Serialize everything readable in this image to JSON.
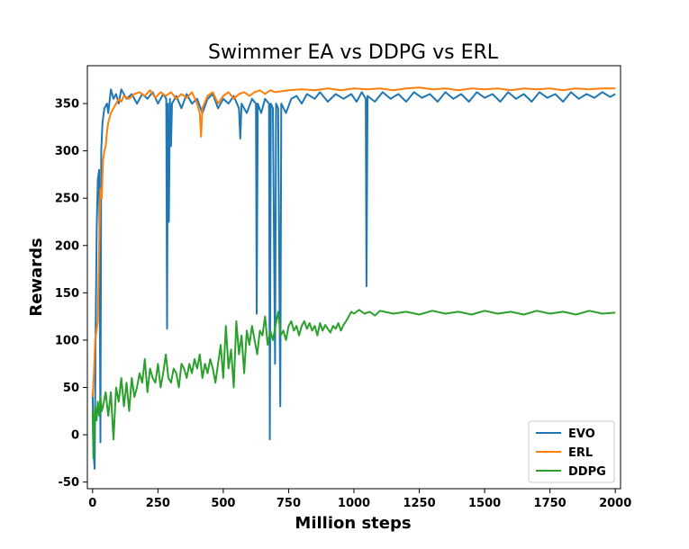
{
  "chart_data": {
    "type": "line",
    "title": "Swimmer EA vs DDPG vs ERL",
    "xlabel": "Million steps",
    "ylabel": "Rewards",
    "xlim": [
      -20,
      2020
    ],
    "ylim": [
      -57,
      390
    ],
    "xticks": [
      0,
      250,
      500,
      750,
      1000,
      1250,
      1500,
      1750,
      2000
    ],
    "yticks": [
      -50,
      0,
      50,
      100,
      150,
      200,
      250,
      300,
      350
    ],
    "grid": false,
    "legend_position": "lower-right",
    "series": [
      {
        "name": "EVO",
        "color": "#1f77b4",
        "points": [
          [
            0,
            45
          ],
          [
            5,
            -25
          ],
          [
            8,
            -36
          ],
          [
            12,
            120
          ],
          [
            16,
            220
          ],
          [
            20,
            270
          ],
          [
            25,
            280
          ],
          [
            30,
            -8
          ],
          [
            33,
            300
          ],
          [
            38,
            330
          ],
          [
            45,
            345
          ],
          [
            55,
            350
          ],
          [
            60,
            340
          ],
          [
            70,
            365
          ],
          [
            80,
            355
          ],
          [
            90,
            360
          ],
          [
            100,
            350
          ],
          [
            110,
            365
          ],
          [
            130,
            355
          ],
          [
            150,
            360
          ],
          [
            170,
            350
          ],
          [
            190,
            360
          ],
          [
            210,
            355
          ],
          [
            230,
            362
          ],
          [
            250,
            350
          ],
          [
            270,
            360
          ],
          [
            282,
            355
          ],
          [
            285,
            112
          ],
          [
            288,
            350
          ],
          [
            292,
            225
          ],
          [
            296,
            355
          ],
          [
            300,
            305
          ],
          [
            304,
            350
          ],
          [
            320,
            358
          ],
          [
            340,
            345
          ],
          [
            360,
            360
          ],
          [
            380,
            350
          ],
          [
            400,
            355
          ],
          [
            420,
            340
          ],
          [
            440,
            355
          ],
          [
            460,
            360
          ],
          [
            480,
            345
          ],
          [
            500,
            355
          ],
          [
            520,
            350
          ],
          [
            540,
            358
          ],
          [
            560,
            345
          ],
          [
            565,
            313
          ],
          [
            570,
            350
          ],
          [
            590,
            340
          ],
          [
            610,
            355
          ],
          [
            625,
            350
          ],
          [
            628,
            128
          ],
          [
            632,
            350
          ],
          [
            645,
            340
          ],
          [
            660,
            355
          ],
          [
            675,
            350
          ],
          [
            678,
            -5
          ],
          [
            682,
            350
          ],
          [
            690,
            345
          ],
          [
            698,
            75
          ],
          [
            702,
            350
          ],
          [
            710,
            345
          ],
          [
            718,
            30
          ],
          [
            722,
            350
          ],
          [
            740,
            340
          ],
          [
            760,
            355
          ],
          [
            780,
            358
          ],
          [
            800,
            350
          ],
          [
            820,
            360
          ],
          [
            850,
            355
          ],
          [
            870,
            362
          ],
          [
            900,
            352
          ],
          [
            930,
            360
          ],
          [
            960,
            355
          ],
          [
            990,
            360
          ],
          [
            1010,
            352
          ],
          [
            1030,
            362
          ],
          [
            1045,
            355
          ],
          [
            1048,
            157
          ],
          [
            1052,
            358
          ],
          [
            1080,
            352
          ],
          [
            1110,
            362
          ],
          [
            1140,
            355
          ],
          [
            1170,
            360
          ],
          [
            1200,
            352
          ],
          [
            1230,
            362
          ],
          [
            1260,
            356
          ],
          [
            1290,
            360
          ],
          [
            1320,
            352
          ],
          [
            1350,
            362
          ],
          [
            1380,
            355
          ],
          [
            1410,
            360
          ],
          [
            1440,
            352
          ],
          [
            1470,
            362
          ],
          [
            1500,
            356
          ],
          [
            1530,
            360
          ],
          [
            1560,
            352
          ],
          [
            1590,
            362
          ],
          [
            1620,
            355
          ],
          [
            1650,
            360
          ],
          [
            1680,
            352
          ],
          [
            1710,
            362
          ],
          [
            1740,
            356
          ],
          [
            1770,
            360
          ],
          [
            1800,
            352
          ],
          [
            1830,
            362
          ],
          [
            1860,
            355
          ],
          [
            1890,
            360
          ],
          [
            1920,
            356
          ],
          [
            1950,
            362
          ],
          [
            1980,
            357
          ],
          [
            2000,
            360
          ]
        ]
      },
      {
        "name": "ERL",
        "color": "#ff7f0e",
        "points": [
          [
            0,
            40
          ],
          [
            5,
            65
          ],
          [
            10,
            100
          ],
          [
            15,
            110
          ],
          [
            20,
            120
          ],
          [
            25,
            200
          ],
          [
            30,
            260
          ],
          [
            35,
            250
          ],
          [
            40,
            290
          ],
          [
            45,
            300
          ],
          [
            50,
            305
          ],
          [
            55,
            320
          ],
          [
            60,
            330
          ],
          [
            65,
            335
          ],
          [
            70,
            340
          ],
          [
            80,
            345
          ],
          [
            90,
            350
          ],
          [
            100,
            355
          ],
          [
            110,
            352
          ],
          [
            120,
            358
          ],
          [
            140,
            355
          ],
          [
            160,
            360
          ],
          [
            180,
            362
          ],
          [
            200,
            358
          ],
          [
            220,
            364
          ],
          [
            240,
            356
          ],
          [
            260,
            362
          ],
          [
            280,
            358
          ],
          [
            300,
            362
          ],
          [
            320,
            355
          ],
          [
            340,
            360
          ],
          [
            360,
            356
          ],
          [
            380,
            362
          ],
          [
            400,
            350
          ],
          [
            410,
            340
          ],
          [
            415,
            315
          ],
          [
            420,
            345
          ],
          [
            440,
            358
          ],
          [
            460,
            362
          ],
          [
            480,
            350
          ],
          [
            500,
            358
          ],
          [
            520,
            362
          ],
          [
            540,
            355
          ],
          [
            560,
            360
          ],
          [
            580,
            362
          ],
          [
            600,
            358
          ],
          [
            620,
            362
          ],
          [
            640,
            364
          ],
          [
            660,
            360
          ],
          [
            680,
            364
          ],
          [
            700,
            362
          ],
          [
            750,
            364
          ],
          [
            800,
            365
          ],
          [
            850,
            364
          ],
          [
            900,
            366
          ],
          [
            950,
            364
          ],
          [
            1000,
            366
          ],
          [
            1050,
            365
          ],
          [
            1100,
            366
          ],
          [
            1150,
            364
          ],
          [
            1200,
            366
          ],
          [
            1250,
            367
          ],
          [
            1300,
            365
          ],
          [
            1350,
            366
          ],
          [
            1400,
            364
          ],
          [
            1450,
            366
          ],
          [
            1500,
            365
          ],
          [
            1550,
            366
          ],
          [
            1600,
            364
          ],
          [
            1650,
            366
          ],
          [
            1700,
            365
          ],
          [
            1750,
            366
          ],
          [
            1800,
            364
          ],
          [
            1850,
            366
          ],
          [
            1900,
            365
          ],
          [
            1950,
            366
          ],
          [
            2000,
            366
          ]
        ]
      },
      {
        "name": "DDPG",
        "color": "#2ca02c",
        "points": [
          [
            0,
            25
          ],
          [
            3,
            -25
          ],
          [
            6,
            5
          ],
          [
            10,
            30
          ],
          [
            15,
            15
          ],
          [
            20,
            35
          ],
          [
            25,
            20
          ],
          [
            30,
            40
          ],
          [
            35,
            25
          ],
          [
            40,
            30
          ],
          [
            50,
            45
          ],
          [
            60,
            20
          ],
          [
            70,
            45
          ],
          [
            80,
            -5
          ],
          [
            90,
            50
          ],
          [
            100,
            35
          ],
          [
            110,
            60
          ],
          [
            120,
            30
          ],
          [
            130,
            55
          ],
          [
            140,
            25
          ],
          [
            150,
            60
          ],
          [
            160,
            40
          ],
          [
            170,
            50
          ],
          [
            180,
            65
          ],
          [
            190,
            55
          ],
          [
            200,
            80
          ],
          [
            210,
            45
          ],
          [
            220,
            70
          ],
          [
            230,
            60
          ],
          [
            240,
            55
          ],
          [
            250,
            75
          ],
          [
            260,
            50
          ],
          [
            270,
            65
          ],
          [
            280,
            85
          ],
          [
            290,
            60
          ],
          [
            300,
            55
          ],
          [
            310,
            70
          ],
          [
            320,
            65
          ],
          [
            330,
            50
          ],
          [
            340,
            75
          ],
          [
            350,
            70
          ],
          [
            360,
            60
          ],
          [
            370,
            75
          ],
          [
            380,
            65
          ],
          [
            390,
            80
          ],
          [
            400,
            70
          ],
          [
            410,
            85
          ],
          [
            420,
            60
          ],
          [
            430,
            75
          ],
          [
            440,
            65
          ],
          [
            450,
            80
          ],
          [
            460,
            70
          ],
          [
            470,
            55
          ],
          [
            480,
            75
          ],
          [
            490,
            95
          ],
          [
            500,
            60
          ],
          [
            510,
            115
          ],
          [
            520,
            70
          ],
          [
            530,
            90
          ],
          [
            540,
            50
          ],
          [
            550,
            120
          ],
          [
            560,
            85
          ],
          [
            570,
            105
          ],
          [
            580,
            65
          ],
          [
            590,
            110
          ],
          [
            600,
            95
          ],
          [
            610,
            115
          ],
          [
            620,
            100
          ],
          [
            630,
            85
          ],
          [
            640,
            110
          ],
          [
            650,
            105
          ],
          [
            660,
            125
          ],
          [
            670,
            95
          ],
          [
            680,
            110
          ],
          [
            690,
            100
          ],
          [
            700,
            115
          ],
          [
            710,
            130
          ],
          [
            720,
            105
          ],
          [
            730,
            110
          ],
          [
            740,
            100
          ],
          [
            750,
            115
          ],
          [
            760,
            120
          ],
          [
            770,
            110
          ],
          [
            780,
            115
          ],
          [
            790,
            105
          ],
          [
            800,
            115
          ],
          [
            810,
            120
          ],
          [
            820,
            112
          ],
          [
            830,
            118
          ],
          [
            840,
            110
          ],
          [
            850,
            115
          ],
          [
            860,
            105
          ],
          [
            870,
            118
          ],
          [
            880,
            110
          ],
          [
            890,
            116
          ],
          [
            900,
            112
          ],
          [
            910,
            108
          ],
          [
            920,
            115
          ],
          [
            930,
            112
          ],
          [
            940,
            118
          ],
          [
            950,
            110
          ],
          [
            960,
            116
          ],
          [
            970,
            120
          ],
          [
            980,
            125
          ],
          [
            990,
            130
          ],
          [
            1000,
            128
          ],
          [
            1020,
            132
          ],
          [
            1040,
            128
          ],
          [
            1060,
            130
          ],
          [
            1080,
            126
          ],
          [
            1100,
            131
          ],
          [
            1150,
            128
          ],
          [
            1200,
            130
          ],
          [
            1250,
            127
          ],
          [
            1300,
            131
          ],
          [
            1350,
            128
          ],
          [
            1400,
            130
          ],
          [
            1450,
            127
          ],
          [
            1500,
            131
          ],
          [
            1550,
            128
          ],
          [
            1600,
            130
          ],
          [
            1650,
            127
          ],
          [
            1700,
            131
          ],
          [
            1750,
            128
          ],
          [
            1800,
            130
          ],
          [
            1850,
            127
          ],
          [
            1900,
            131
          ],
          [
            1950,
            128
          ],
          [
            2000,
            129
          ]
        ]
      }
    ]
  }
}
